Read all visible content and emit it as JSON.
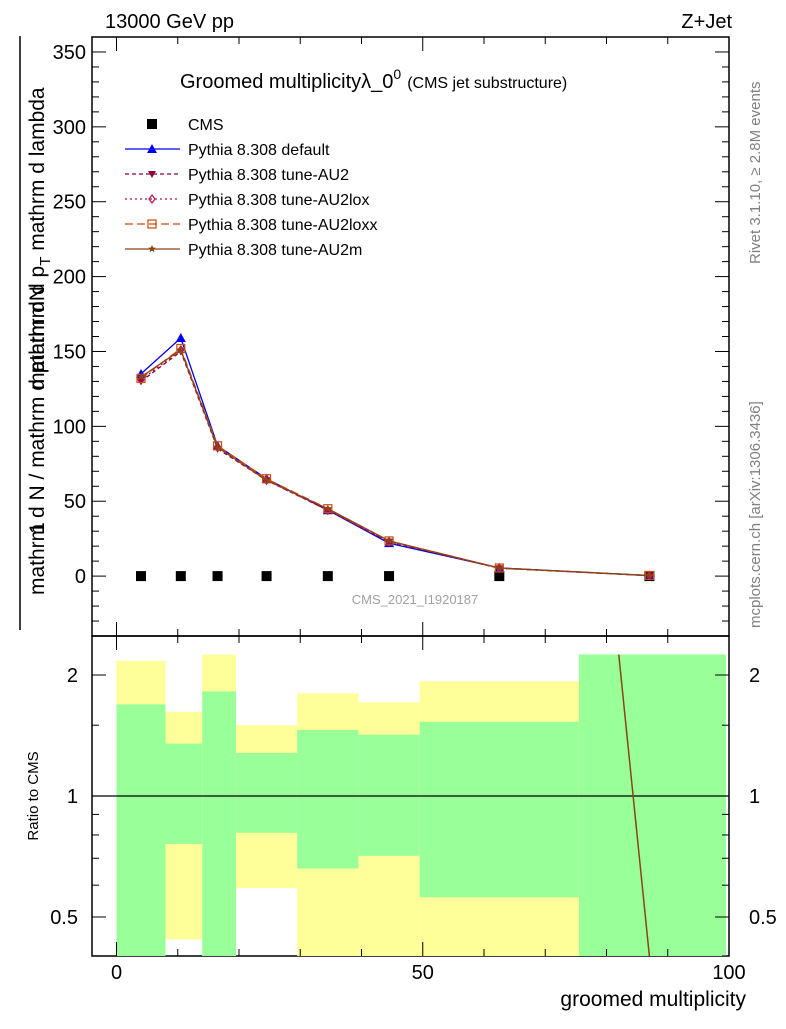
{
  "header": {
    "left": "13000 GeV pp",
    "right": "Z+Jet"
  },
  "side_labels": {
    "rivet": "Rivet 3.1.10, ≥ 2.8M events",
    "mcplots": "mcplots.cern.ch [arXiv:1306.3436]"
  },
  "watermark": "CMS_2021_I1920187",
  "chart_data": [
    {
      "type": "line",
      "title": "Groomed multiplicityλ_0",
      "title_sup": "0",
      "subtitle": "(CMS jet substructure)",
      "ylabel_top": "mathrm dN",
      "ylabel_one": "1",
      "ylabel_bottom": "mathrm d N / mathrm d p",
      "ylabel_right": "mathrm d p",
      "ylabel_sub": "T",
      "ylabel_mid": " mathrm d lambda",
      "ylabel_right_mid": "mathrm d",
      "ylim": [
        -40,
        360
      ],
      "yticks": [
        0,
        50,
        100,
        150,
        200,
        250,
        300,
        350
      ],
      "xlim": [
        -4,
        100
      ],
      "grid": false,
      "legend_position": "top-left",
      "series": [
        {
          "name": "CMS",
          "color": "#000000",
          "marker": "square",
          "x": [
            4,
            10.5,
            16.5,
            24.5,
            34.5,
            44.5,
            62.5,
            87
          ],
          "y": [
            0,
            0,
            0,
            0,
            0,
            0,
            0,
            0
          ]
        },
        {
          "name": "Pythia 8.308 default",
          "color": "#0000ee",
          "marker": "triangle-up",
          "dash": "",
          "x": [
            4,
            10.5,
            16.5,
            24.5,
            34.5,
            44.5,
            62.5,
            87
          ],
          "y": [
            135,
            159,
            87,
            65,
            44,
            22,
            5.5,
            0.3
          ]
        },
        {
          "name": "Pythia 8.308 tune-AU2",
          "color": "#8b0035",
          "marker": "triangle-down",
          "dash": "4,3",
          "x": [
            4,
            10.5,
            16.5,
            24.5,
            34.5,
            44.5,
            62.5,
            87
          ],
          "y": [
            130,
            150,
            85,
            64,
            44,
            23,
            5.2,
            0.4
          ]
        },
        {
          "name": "Pythia 8.308 tune-AU2lox",
          "color": "#b5134d",
          "marker": "diamond-open",
          "dash": "2,3",
          "x": [
            4,
            10.5,
            16.5,
            24.5,
            34.5,
            44.5,
            62.5,
            87
          ],
          "y": [
            131,
            151,
            86,
            64,
            44,
            23,
            5.3,
            0.4
          ]
        },
        {
          "name": "Pythia 8.308 tune-AU2loxx",
          "color": "#cc4a14",
          "marker": "square-open",
          "dash": "8,4",
          "x": [
            4,
            10.5,
            16.5,
            24.5,
            34.5,
            44.5,
            62.5,
            87
          ],
          "y": [
            132,
            152,
            87,
            65,
            45,
            23.5,
            5.4,
            0.4
          ]
        },
        {
          "name": "Pythia 8.308 tune-AU2m",
          "color": "#8b4513",
          "marker": "star",
          "dash": "",
          "x": [
            4,
            10.5,
            16.5,
            24.5,
            34.5,
            44.5,
            62.5,
            87
          ],
          "y": [
            133,
            151,
            86,
            64,
            45,
            23.5,
            5.4,
            0.4
          ]
        }
      ]
    },
    {
      "type": "area",
      "ylabel": "Ratio to CMS",
      "xlabel": "groomed multiplicity",
      "ylim": [
        0.35,
        2.25
      ],
      "yticks": [
        0.5,
        1,
        2
      ],
      "xlim": [
        -4,
        100
      ],
      "xticks": [
        0,
        50,
        100
      ],
      "reference_line": 1,
      "bands": [
        {
          "x0": 0,
          "x1": 8,
          "inner": [
            0,
            1.69
          ],
          "outer": [
            0,
            2.17
          ]
        },
        {
          "x0": 8,
          "x1": 14,
          "inner": [
            0.76,
            1.35
          ],
          "outer": [
            0.44,
            1.62
          ]
        },
        {
          "x0": 14,
          "x1": 19.5,
          "inner": [
            0,
            1.82
          ],
          "outer": [
            0,
            2.25
          ]
        },
        {
          "x0": 19.5,
          "x1": 29.5,
          "inner": [
            0.81,
            1.28
          ],
          "outer": [
            0.59,
            1.5
          ]
        },
        {
          "x0": 29.5,
          "x1": 39.5,
          "inner": [
            0.66,
            1.46
          ],
          "outer": [
            0,
            1.8
          ]
        },
        {
          "x0": 39.5,
          "x1": 49.5,
          "inner": [
            0.71,
            1.42
          ],
          "outer": [
            0,
            1.71
          ]
        },
        {
          "x0": 49.5,
          "x1": 75.5,
          "inner": [
            0.56,
            1.53
          ],
          "outer": [
            0,
            1.93
          ]
        },
        {
          "x0": 75.5,
          "x1": 99.5,
          "inner": [
            0,
            2.25
          ],
          "outer": [
            0,
            2.25
          ]
        }
      ],
      "ratio_line": {
        "color": "#8b4513",
        "x": [
          82,
          87
        ],
        "y": [
          2.25,
          0.35
        ]
      }
    }
  ]
}
